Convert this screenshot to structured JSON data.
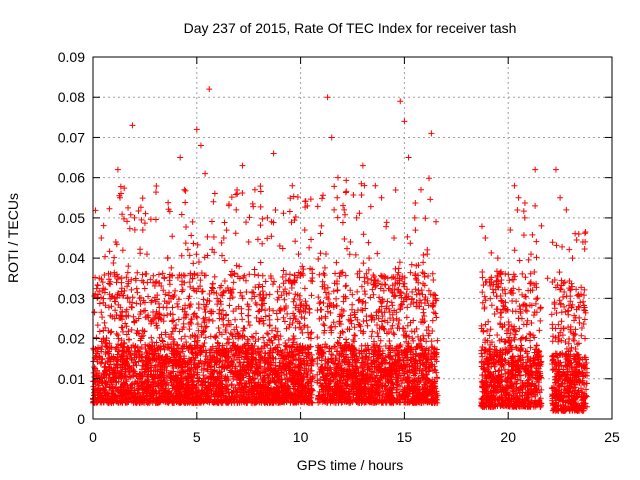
{
  "chart_data": {
    "type": "scatter",
    "title": "Day 237 of 2015, Rate Of TEC Index for receiver tash",
    "xlabel": "GPS time / hours",
    "ylabel": "ROTI / TECUs",
    "xlim": [
      0,
      25
    ],
    "ylim": [
      0,
      0.09
    ],
    "xticks": [
      "0",
      "5",
      "10",
      "15",
      "20",
      "25"
    ],
    "yticks": [
      "0",
      "0.01",
      "0.02",
      "0.03",
      "0.04",
      "0.05",
      "0.06",
      "0.07",
      "0.08",
      "0.09"
    ],
    "grid": true,
    "marker": "plus",
    "marker_color": "#ff0000",
    "series": [
      {
        "points": [
          [
            0.1,
            0.006
          ],
          [
            0.2,
            0.012
          ],
          [
            0.3,
            0.035
          ],
          [
            0.4,
            0.045
          ],
          [
            0.5,
            0.022
          ],
          [
            0.6,
            0.009
          ],
          [
            0.8,
            0.031
          ],
          [
            1.0,
            0.015
          ],
          [
            1.1,
            0.044
          ],
          [
            1.2,
            0.062
          ],
          [
            1.3,
            0.055
          ],
          [
            1.5,
            0.018
          ],
          [
            1.7,
            0.038
          ],
          [
            1.9,
            0.073
          ],
          [
            2.0,
            0.05
          ],
          [
            2.2,
            0.025
          ],
          [
            2.4,
            0.047
          ],
          [
            2.6,
            0.041
          ],
          [
            2.8,
            0.012
          ],
          [
            3.0,
            0.034
          ],
          [
            3.3,
            0.021
          ],
          [
            3.6,
            0.04
          ],
          [
            3.9,
            0.016
          ],
          [
            4.2,
            0.065
          ],
          [
            4.4,
            0.057
          ],
          [
            4.6,
            0.03
          ],
          [
            4.8,
            0.049
          ],
          [
            5.0,
            0.072
          ],
          [
            5.2,
            0.068
          ],
          [
            5.4,
            0.061
          ],
          [
            5.6,
            0.082
          ],
          [
            5.8,
            0.054
          ],
          [
            6.0,
            0.019
          ],
          [
            6.3,
            0.045
          ],
          [
            6.6,
            0.03
          ],
          [
            6.9,
            0.052
          ],
          [
            7.2,
            0.063
          ],
          [
            7.5,
            0.044
          ],
          [
            7.8,
            0.057
          ],
          [
            8.1,
            0.025
          ],
          [
            8.4,
            0.05
          ],
          [
            8.7,
            0.066
          ],
          [
            9.0,
            0.043
          ],
          [
            9.3,
            0.036
          ],
          [
            9.6,
            0.058
          ],
          [
            9.9,
            0.041
          ],
          [
            10.2,
            0.047
          ],
          [
            10.5,
            0.02
          ],
          [
            10.8,
            0.011
          ],
          [
            11.0,
            0.048
          ],
          [
            11.3,
            0.08
          ],
          [
            11.5,
            0.07
          ],
          [
            11.8,
            0.06
          ],
          [
            12.1,
            0.052
          ],
          [
            12.4,
            0.044
          ],
          [
            12.7,
            0.05
          ],
          [
            13.0,
            0.063
          ],
          [
            13.3,
            0.04
          ],
          [
            13.6,
            0.058
          ],
          [
            13.9,
            0.055
          ],
          [
            14.2,
            0.035
          ],
          [
            14.5,
            0.045
          ],
          [
            14.8,
            0.079
          ],
          [
            15.0,
            0.074
          ],
          [
            15.2,
            0.065
          ],
          [
            15.5,
            0.05
          ],
          [
            15.8,
            0.057
          ],
          [
            16.1,
            0.041
          ],
          [
            16.3,
            0.071
          ],
          [
            16.5,
            0.03
          ],
          [
            18.9,
            0.045
          ],
          [
            19.2,
            0.034
          ],
          [
            19.5,
            0.04
          ],
          [
            19.8,
            0.028
          ],
          [
            20.1,
            0.047
          ],
          [
            20.3,
            0.058
          ],
          [
            20.5,
            0.055
          ],
          [
            20.8,
            0.05
          ],
          [
            21.1,
            0.041
          ],
          [
            21.3,
            0.062
          ],
          [
            21.6,
            0.048
          ],
          [
            21.9,
            0.035
          ],
          [
            22.1,
            0.026
          ],
          [
            22.3,
            0.062
          ],
          [
            22.5,
            0.055
          ],
          [
            22.8,
            0.052
          ],
          [
            23.1,
            0.04
          ],
          [
            23.4,
            0.046
          ],
          [
            23.6,
            0.044
          ],
          [
            23.7,
            0.02
          ]
        ]
      }
    ],
    "density_segments": [
      {
        "from": 0.0,
        "to": 10.6,
        "base_min": 0.004,
        "base_max": 0.03,
        "spikes": 0.058
      },
      {
        "from": 10.8,
        "to": 16.6,
        "base_min": 0.004,
        "base_max": 0.03,
        "spikes": 0.06
      },
      {
        "from": 18.7,
        "to": 21.6,
        "base_min": 0.003,
        "base_max": 0.03,
        "spikes": 0.055
      },
      {
        "from": 22.1,
        "to": 23.8,
        "base_min": 0.002,
        "base_max": 0.028,
        "spikes": 0.047
      }
    ]
  }
}
